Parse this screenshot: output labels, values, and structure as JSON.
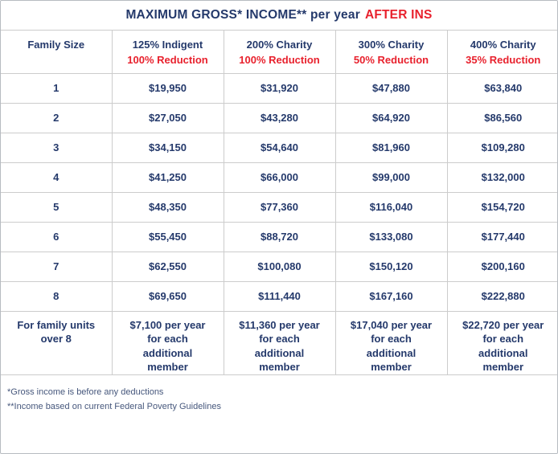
{
  "title": {
    "main": "MAXIMUM GROSS* INCOME** per year",
    "highlight": "AFTER INS"
  },
  "chart_data": {
    "type": "table",
    "title": "MAXIMUM GROSS* INCOME** per year AFTER INS",
    "columns": [
      {
        "label": "Family Size",
        "reduction": ""
      },
      {
        "label": "125% Indigent",
        "reduction": "100% Reduction"
      },
      {
        "label": "200% Charity",
        "reduction": "100% Reduction"
      },
      {
        "label": "300% Charity",
        "reduction": "50% Reduction"
      },
      {
        "label": "400% Charity",
        "reduction": "35% Reduction"
      }
    ],
    "rows": [
      [
        "1",
        "$19,950",
        "$31,920",
        "$47,880",
        "$63,840"
      ],
      [
        "2",
        "$27,050",
        "$43,280",
        "$64,920",
        "$86,560"
      ],
      [
        "3",
        "$34,150",
        "$54,640",
        "$81,960",
        "$109,280"
      ],
      [
        "4",
        "$41,250",
        "$66,000",
        "$99,000",
        "$132,000"
      ],
      [
        "5",
        "$48,350",
        "$77,360",
        "$116,040",
        "$154,720"
      ],
      [
        "6",
        "$55,450",
        "$88,720",
        "$133,080",
        "$177,440"
      ],
      [
        "7",
        "$62,550",
        "$100,080",
        "$150,120",
        "$200,160"
      ],
      [
        "8",
        "$69,650",
        "$111,440",
        "$167,160",
        "$222,880"
      ],
      [
        "For family units over 8",
        "$7,100 per year for each additional member",
        "$11,360 per year for each additional member",
        "$17,040 per year for each additional member",
        "$22,720 per year for each additional member"
      ]
    ]
  },
  "footnotes": [
    "*Gross income is before any deductions",
    "**Income based on current Federal Poverty Guidelines"
  ],
  "colors": {
    "navy": "#24396b",
    "red": "#e8212d",
    "border": "#cccccc"
  }
}
